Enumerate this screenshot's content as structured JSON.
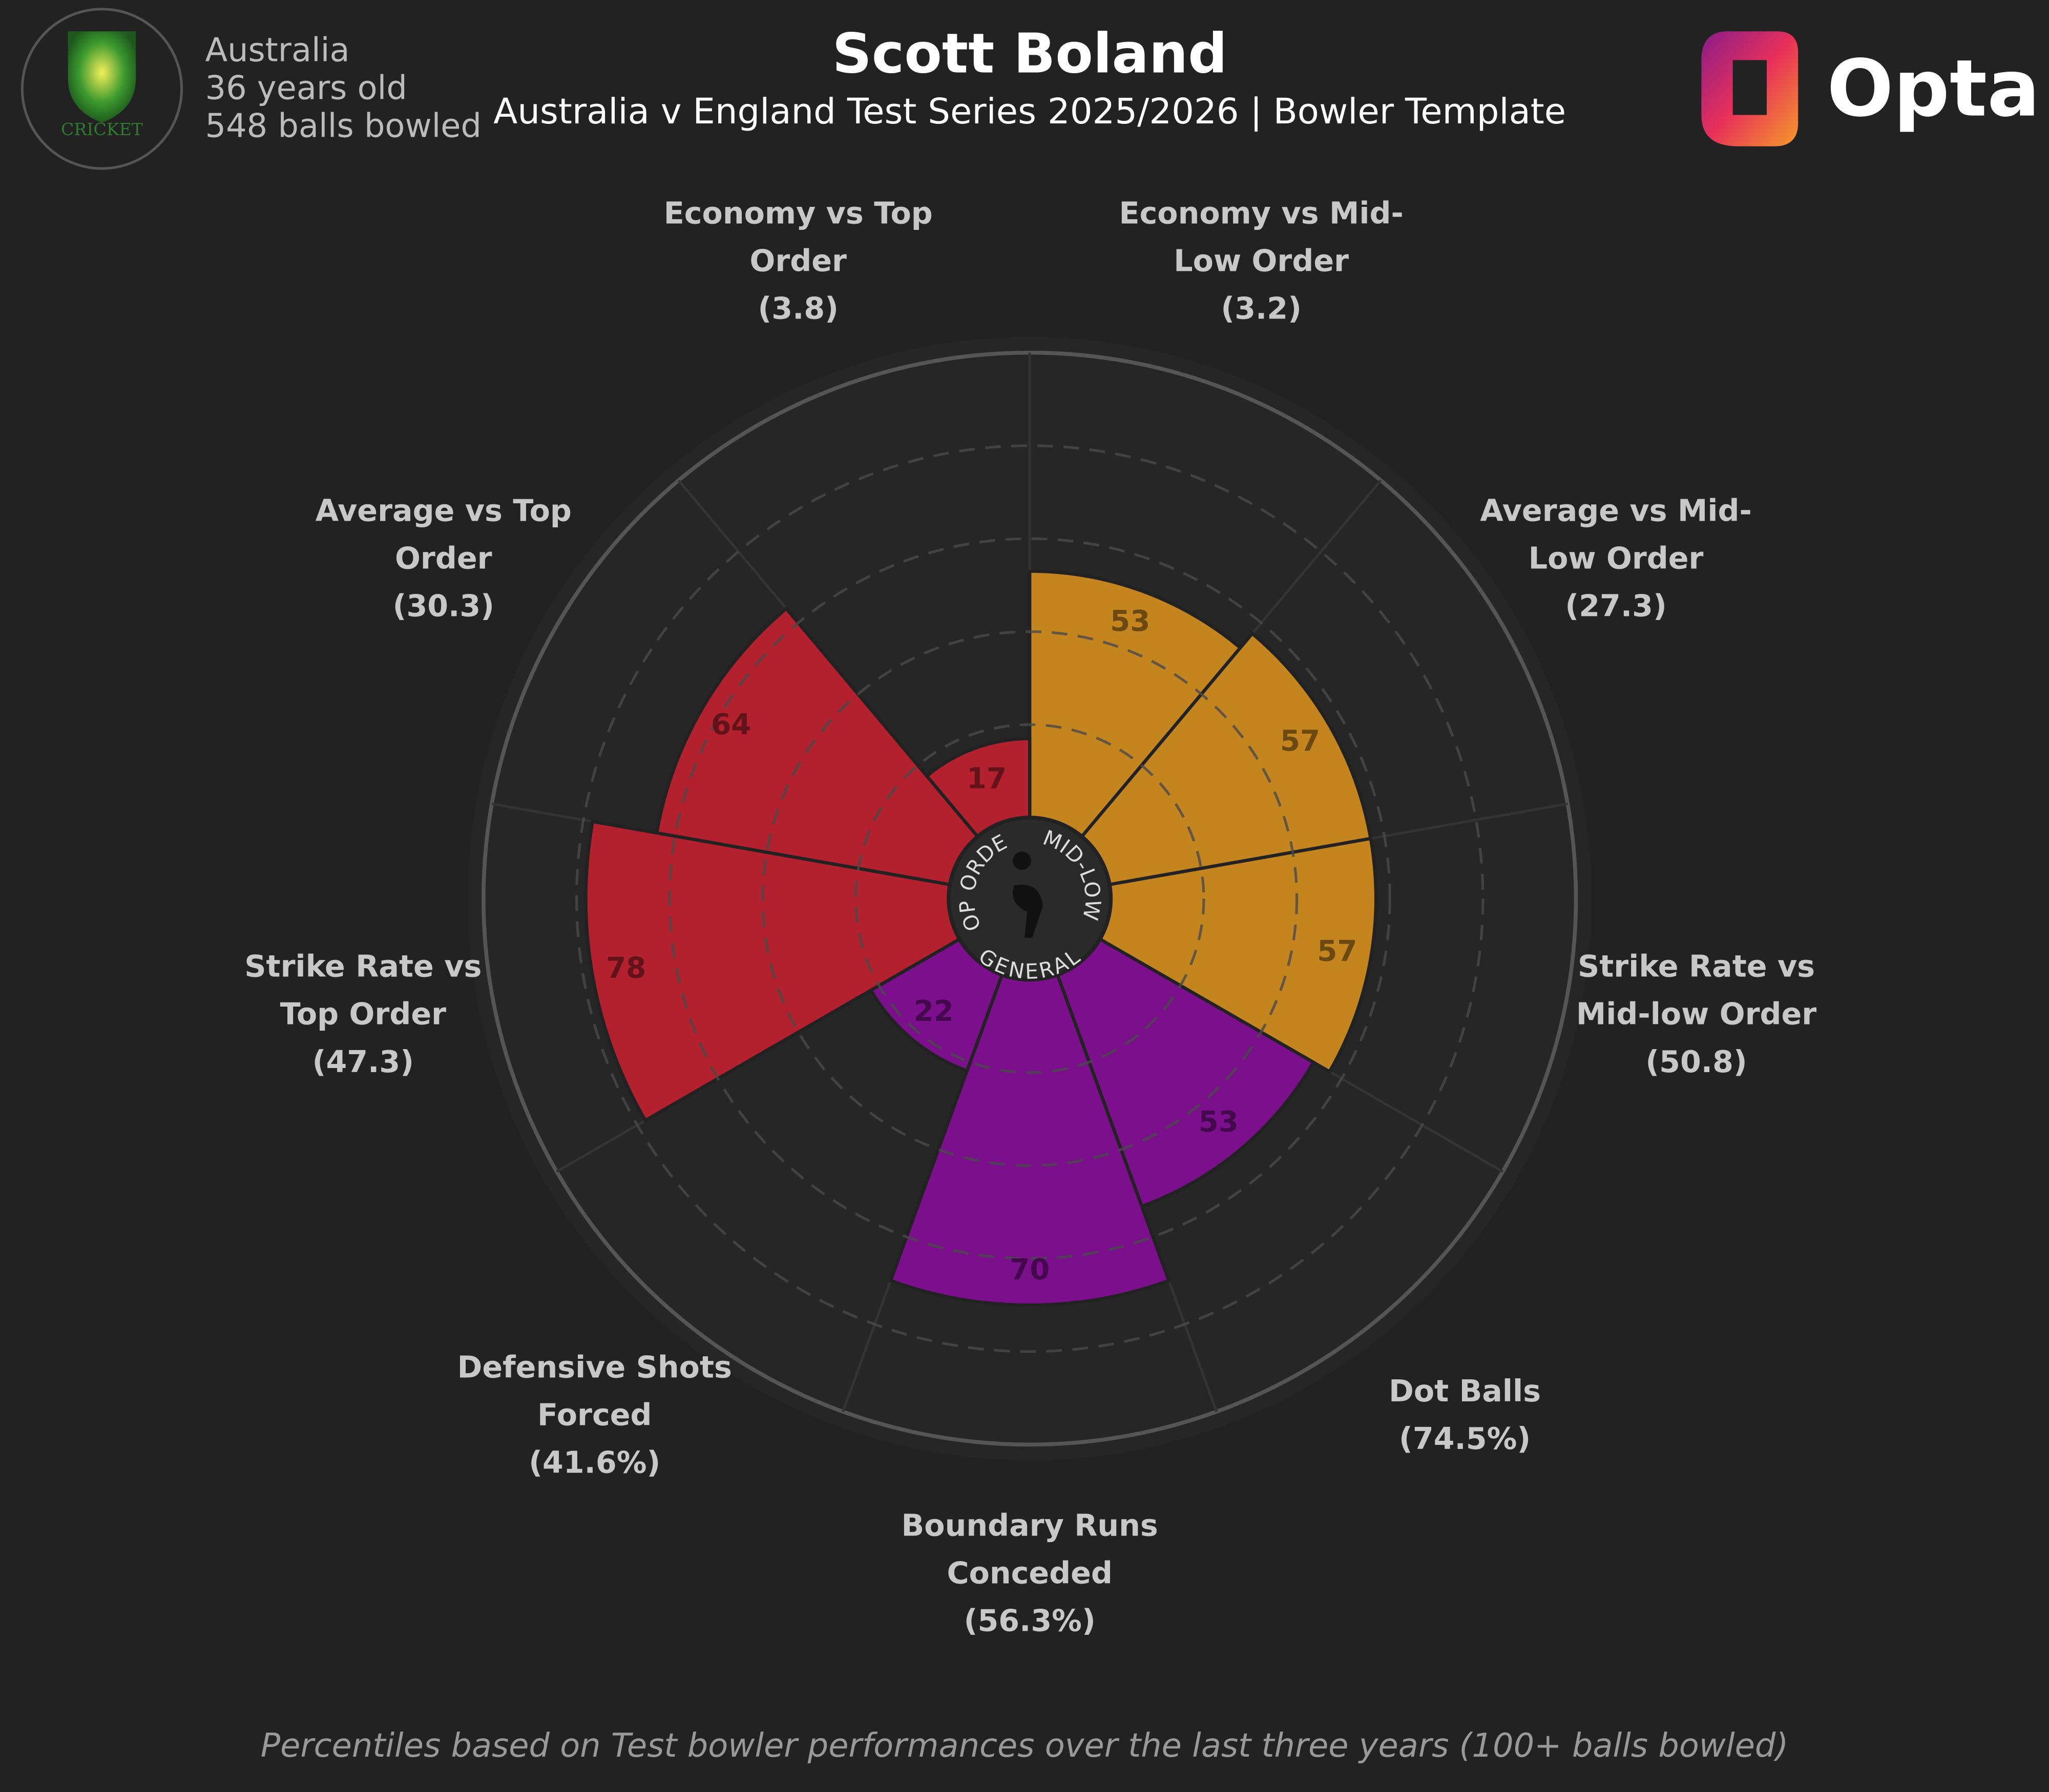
{
  "chart_data": {
    "type": "polar_bar",
    "title": "Scott Boland",
    "subtitle": "Australia v England Test Series 2025/2026 | Bowler Template",
    "player_info": [
      "Australia",
      "36 years old",
      "548 balls bowled"
    ],
    "logo_text": "CRICKET",
    "brand": "Opta",
    "footnote": "Percentiles based on Test bowler performances over the last three years (100+ balls bowled)",
    "categories": [
      [
        "Economy vs Mid-",
        "Low Order"
      ],
      [
        "Average vs Mid-",
        "Low Order"
      ],
      [
        "Strike Rate vs",
        "Mid-low Order"
      ],
      [
        "Dot Balls"
      ],
      [
        "Boundary Runs",
        "Conceded"
      ],
      [
        "Defensive Shots",
        "Forced"
      ],
      [
        "Strike Rate vs",
        "Top Order"
      ],
      [
        "Average vs Top",
        "Order"
      ],
      [
        "Economy vs Top",
        "Order"
      ]
    ],
    "raw_values": [
      "(3.2)",
      "(27.3)",
      "(50.8)",
      "(74.5%)",
      "(56.3%)",
      "(41.6%)",
      "(47.3)",
      "(30.3)",
      "(3.8)"
    ],
    "values": [
      53,
      57,
      57,
      53,
      70,
      22,
      78,
      64,
      17
    ],
    "colors": [
      "#c4841e",
      "#c4841e",
      "#c4841e",
      "#7b0f8c",
      "#7b0f8c",
      "#7b0f8c",
      "#b3202e",
      "#b3202e",
      "#b3202e"
    ],
    "group_labels": [
      "MID-LOW",
      "GENERAL",
      "TOP ORDER"
    ],
    "ylim": [
      0,
      100
    ],
    "yticks": [
      20,
      40,
      60,
      80
    ],
    "grid": true
  }
}
